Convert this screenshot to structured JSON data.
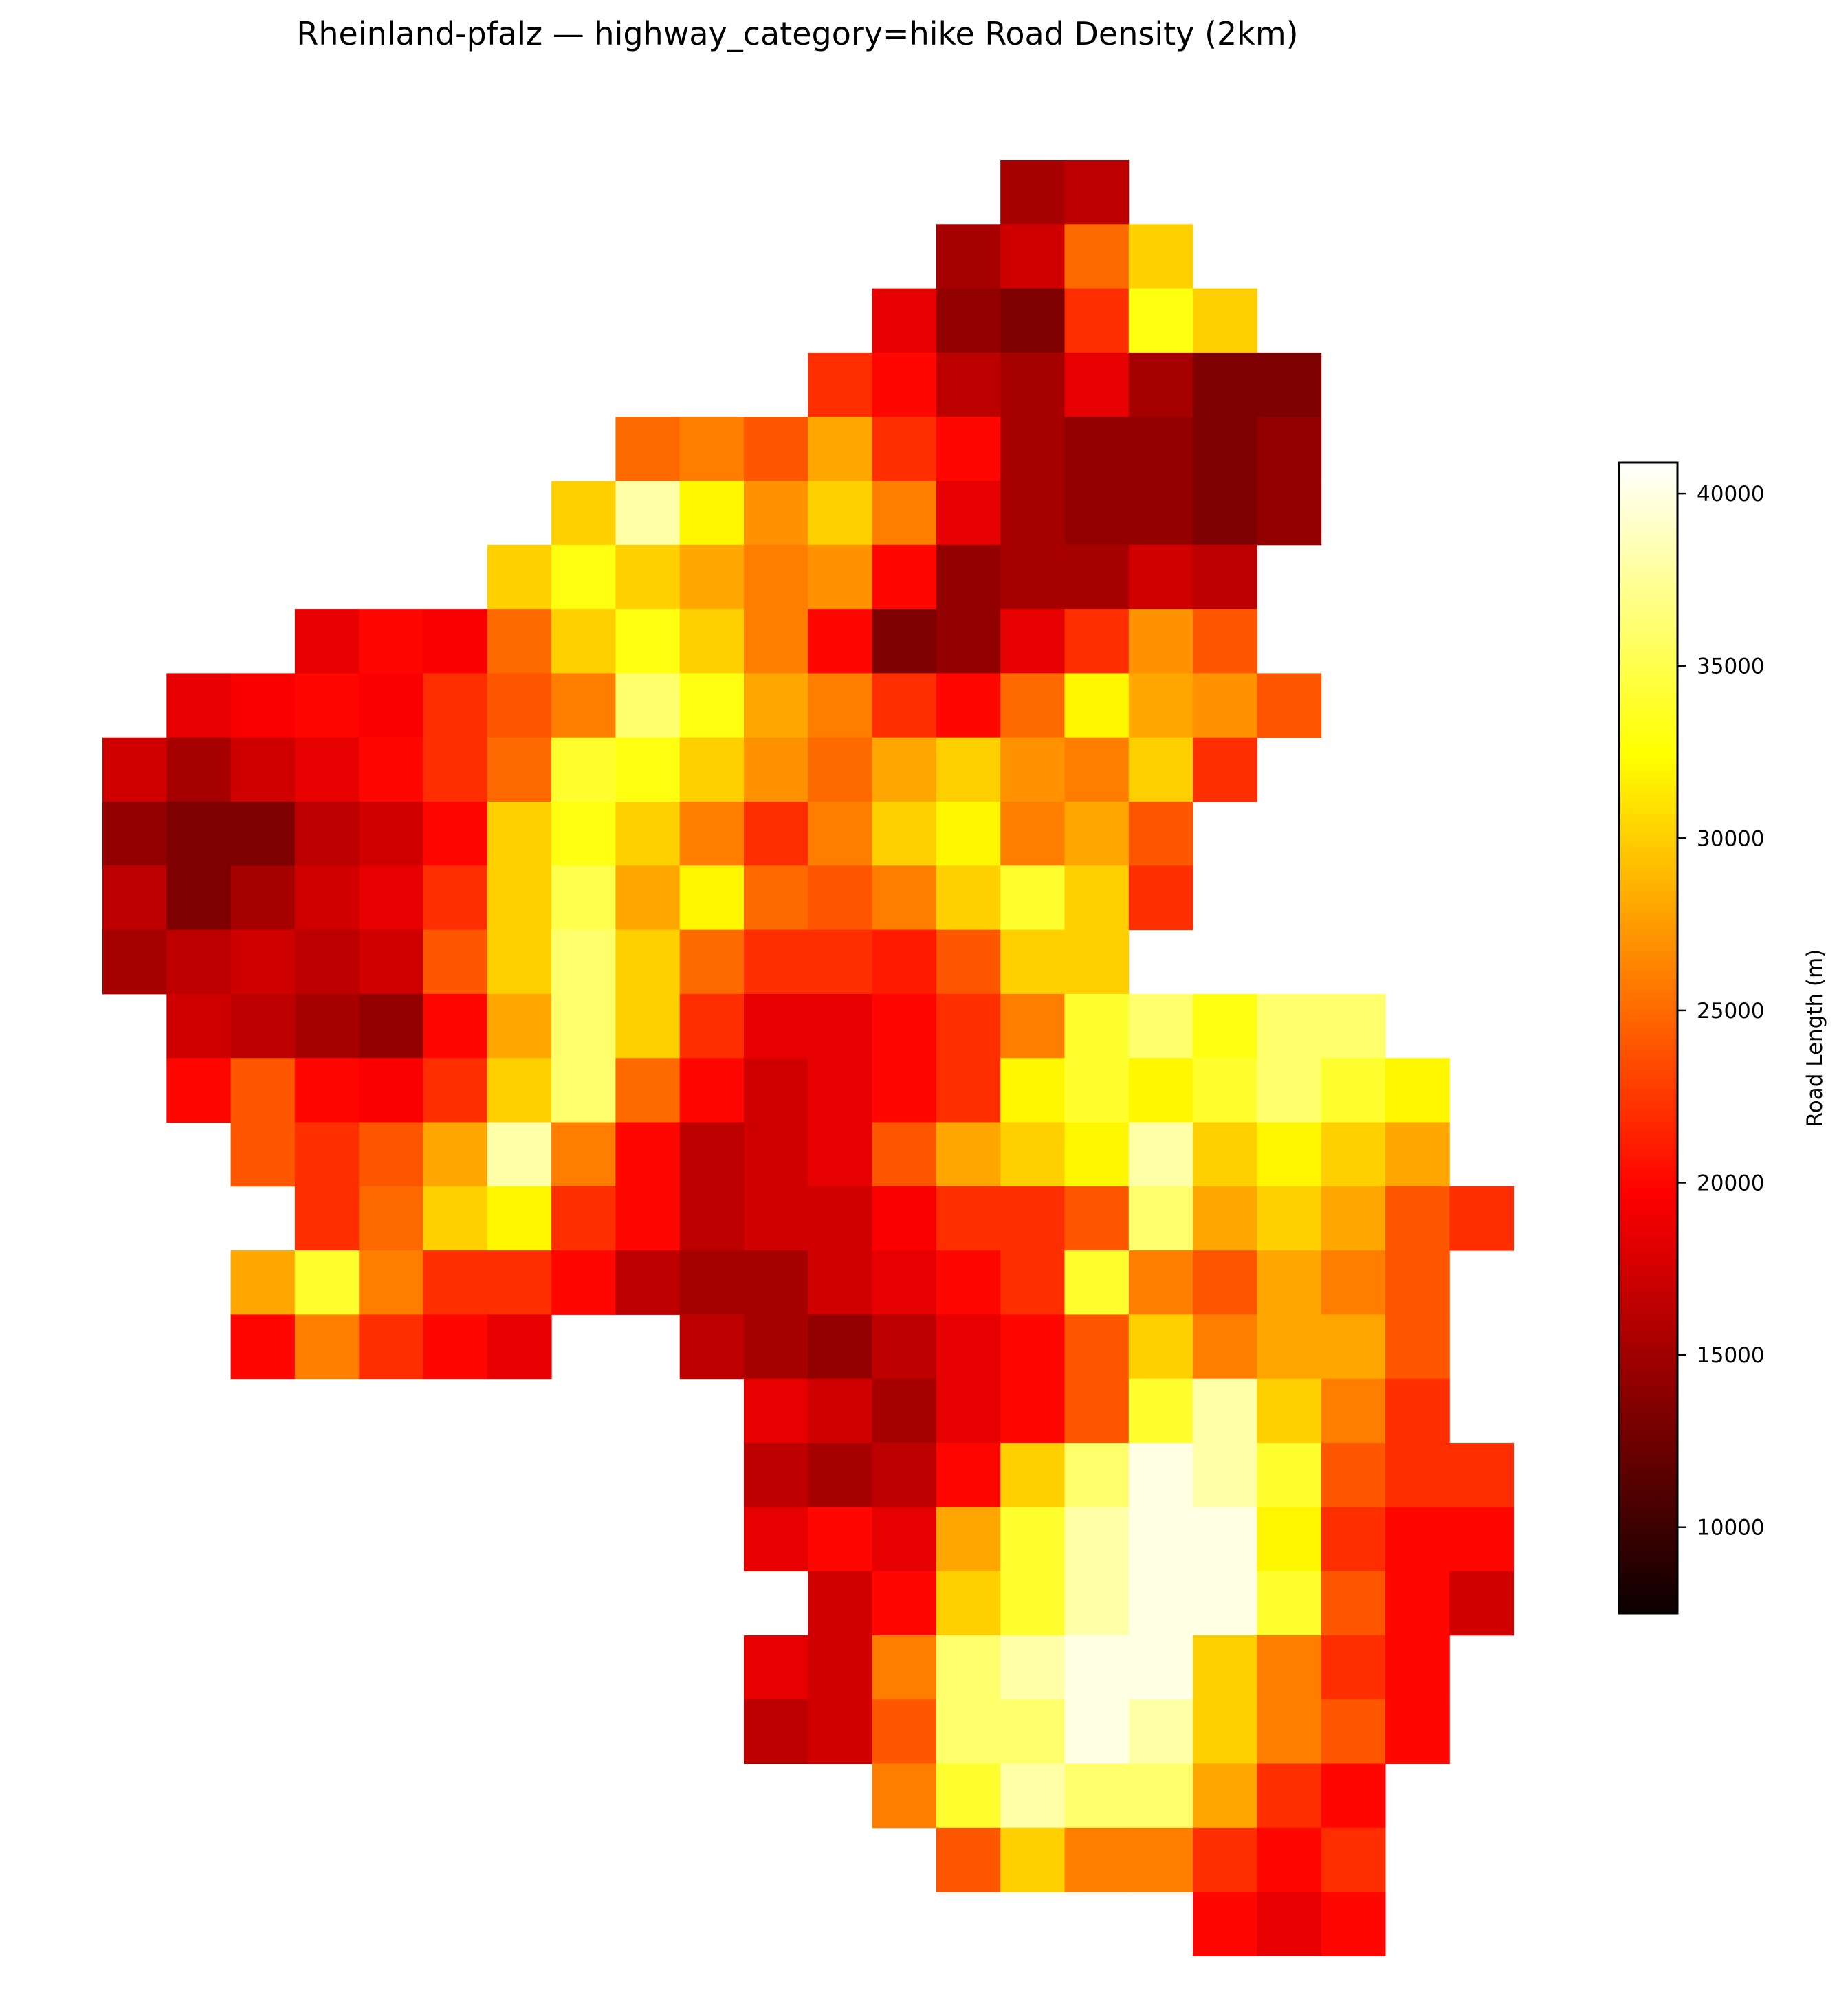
{
  "chart_data": {
    "type": "heatmap",
    "title": "Rheinland-pfalz — highway_category=hike Road Density (2km)",
    "colormap": "hot",
    "colorbar": {
      "label": "Road Length (m)",
      "range": [
        7500,
        40900
      ],
      "ticks": [
        10000,
        15000,
        20000,
        25000,
        30000,
        35000,
        40000
      ],
      "tick_labels": [
        "10000",
        "15000",
        "20000",
        "25000",
        "30000",
        "35000",
        "40000"
      ],
      "position": "right"
    },
    "axes_visible": false,
    "grid_note_units": "approximate coarse-resolution values (m) by grid row, west→east",
    "rows": [
      {
        "start": 14,
        "values": [
          15000,
          16000
        ]
      },
      {
        "start": 13,
        "values": [
          15000,
          17000,
          25000,
          30000
        ]
      },
      {
        "start": 12,
        "values": [
          18000,
          14000,
          13000,
          22000,
          33000,
          30000
        ]
      },
      {
        "start": 11,
        "values": [
          22000,
          20000,
          16000,
          15000,
          18000,
          15000,
          13000,
          13000
        ]
      },
      {
        "start": 8,
        "values": [
          25000,
          26000,
          24000,
          28000,
          22000,
          20000,
          15000,
          14000,
          14000,
          13000,
          14000
        ]
      },
      {
        "start": 7,
        "values": [
          30000,
          38000,
          32000,
          27000,
          30000,
          26000,
          18000,
          15000,
          14000,
          14000,
          13000,
          14000
        ]
      },
      {
        "start": 6,
        "values": [
          30000,
          33000,
          30000,
          28000,
          26000,
          27000,
          20000,
          14000,
          15000,
          15000,
          17000,
          16000
        ]
      },
      {
        "start": 3,
        "values": [
          18000,
          20000,
          19000,
          25000,
          30000,
          33000,
          30000,
          26000,
          20000,
          13000,
          14000,
          18000,
          22000,
          27000,
          24000
        ]
      },
      {
        "start": 1,
        "values": [
          18000,
          19000,
          20000,
          19000,
          22000,
          24000,
          26000,
          36000,
          33000,
          28000,
          26000,
          22000,
          20000,
          25000,
          32000,
          28000,
          27000,
          24000
        ]
      },
      {
        "start": 0,
        "values": [
          17000,
          15000,
          17000,
          18000,
          20000,
          22000,
          25000,
          34000,
          33000,
          30000,
          27000,
          25000,
          28000,
          30000,
          27000,
          26000,
          30000,
          22000
        ]
      },
      {
        "start": 0,
        "values": [
          14000,
          13000,
          13000,
          16000,
          17000,
          20000,
          30000,
          33000,
          30000,
          26000,
          22000,
          26000,
          30000,
          32000,
          26000,
          28000,
          24000
        ]
      },
      {
        "start": 0,
        "values": [
          16000,
          13000,
          15000,
          17000,
          18000,
          22000,
          30000,
          35000,
          28000,
          32000,
          25000,
          24000,
          26000,
          30000,
          34000,
          30000,
          22000
        ]
      },
      {
        "start": 0,
        "values": [
          15000,
          16000,
          17000,
          16000,
          17000,
          24000,
          30000,
          36000,
          30000,
          25000,
          22000,
          22000,
          21000,
          24000,
          30000,
          30000
        ]
      },
      {
        "start": 1,
        "values": [
          17000,
          16000,
          15000,
          14000,
          20000,
          28000,
          36000,
          30000,
          22000,
          18000,
          18000,
          20000,
          22000,
          26000,
          34000,
          36000,
          33000,
          36000,
          36000
        ]
      },
      {
        "start": 1,
        "values": [
          20000,
          24000,
          20000,
          19000,
          22000,
          30000,
          36000,
          25000,
          20000,
          17000,
          18000,
          20000,
          22000,
          32000,
          34000,
          32000,
          34000,
          36000,
          34000,
          32000
        ]
      },
      {
        "start": 2,
        "values": [
          24000,
          22000,
          24000,
          28000,
          38000,
          26000,
          20000,
          16000,
          17000,
          18000,
          24000,
          28000,
          30000,
          32000,
          38000,
          30000,
          32000,
          30000,
          28000
        ]
      },
      {
        "start": 3,
        "values": [
          22000,
          25000,
          30000,
          32000,
          22000,
          20000,
          16000,
          17000,
          17000,
          19000,
          22000,
          22000,
          24000,
          36000,
          28000,
          30000,
          28000,
          24000,
          22000
        ]
      },
      {
        "start": 2,
        "values": [
          28000,
          34000,
          26000,
          22000,
          22000,
          20000,
          16000,
          15000,
          15000,
          17000,
          18000,
          20000,
          22000,
          34000,
          26000,
          24000,
          28000,
          26000,
          24000
        ]
      },
      {
        "start": 2,
        "values": [
          20000,
          26000,
          22000,
          20000,
          18000,
          null,
          null,
          16000,
          15000,
          14000,
          16000,
          18000,
          20000,
          24000,
          30000,
          26000,
          28000,
          28000,
          24000
        ]
      },
      {
        "start": 10,
        "values": [
          18000,
          17000,
          15000,
          18000,
          20000,
          24000,
          34000,
          38000,
          30000,
          26000,
          22000
        ]
      },
      {
        "start": 10,
        "values": [
          16000,
          15000,
          16000,
          20000,
          30000,
          36000,
          40000,
          38000,
          34000,
          24000,
          22000,
          22000
        ]
      },
      {
        "start": 10,
        "values": [
          18000,
          20000,
          18000,
          28000,
          34000,
          38000,
          40000,
          40000,
          32000,
          22000,
          20000,
          20000
        ]
      },
      {
        "start": 11,
        "values": [
          17000,
          20000,
          30000,
          34000,
          38000,
          40000,
          40000,
          34000,
          24000,
          20000,
          17000
        ]
      },
      {
        "start": 10,
        "values": [
          18000,
          17000,
          26000,
          36000,
          38000,
          40000,
          40000,
          30000,
          26000,
          22000,
          20000
        ]
      },
      {
        "start": 10,
        "values": [
          16000,
          17000,
          24000,
          36000,
          36000,
          40000,
          38000,
          30000,
          26000,
          24000,
          20000
        ]
      },
      {
        "start": 12,
        "values": [
          26000,
          34000,
          38000,
          36000,
          36000,
          28000,
          22000,
          20000
        ]
      },
      {
        "start": 13,
        "values": [
          24000,
          30000,
          26000,
          26000,
          22000,
          20000,
          22000
        ]
      },
      {
        "start": 17,
        "values": [
          20000,
          18000,
          20000
        ]
      }
    ]
  }
}
